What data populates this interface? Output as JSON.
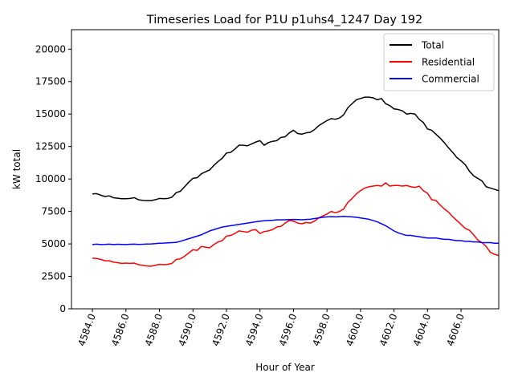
{
  "chart_data": {
    "type": "line",
    "title": "Timeseries Load for P1U p1uhs4_1247  Day 192",
    "xlabel": "Hour of Year",
    "ylabel": "kW total",
    "xlim": [
      4582.75,
      4608.25
    ],
    "ylim": [
      0,
      21500
    ],
    "x_ticks": [
      4584,
      4586,
      4588,
      4590,
      4592,
      4594,
      4596,
      4598,
      4600,
      4602,
      4604,
      4606
    ],
    "x_tick_labels": [
      "4584.0",
      "4586.0",
      "4588.0",
      "4590.0",
      "4592.0",
      "4594.0",
      "4596.0",
      "4598.0",
      "4600.0",
      "4602.0",
      "4604.0",
      "4606.0"
    ],
    "y_ticks": [
      0,
      2500,
      5000,
      7500,
      10000,
      12500,
      15000,
      17500,
      20000
    ],
    "y_tick_labels": [
      "0",
      "2500",
      "5000",
      "7500",
      "10000",
      "12500",
      "15000",
      "17500",
      "20000"
    ],
    "legend_position": "top-right",
    "x_start": 4584,
    "x_step": 0.25,
    "series": [
      {
        "name": "Total",
        "color": "#000000",
        "values": [
          8850,
          8870,
          8750,
          8650,
          8700,
          8560,
          8520,
          8480,
          8480,
          8500,
          8560,
          8400,
          8350,
          8330,
          8330,
          8400,
          8500,
          8480,
          8500,
          8600,
          8950,
          9050,
          9400,
          9750,
          10050,
          10100,
          10400,
          10550,
          10700,
          11050,
          11350,
          11600,
          12000,
          12050,
          12300,
          12600,
          12600,
          12550,
          12700,
          12850,
          12950,
          12600,
          12800,
          12900,
          12950,
          13200,
          13250,
          13550,
          13750,
          13500,
          13450,
          13550,
          13600,
          13800,
          14100,
          14300,
          14500,
          14650,
          14600,
          14700,
          14950,
          15500,
          15800,
          16100,
          16200,
          16300,
          16300,
          16250,
          16100,
          16200,
          15800,
          15650,
          15400,
          15350,
          15250,
          15000,
          15050,
          15000,
          14600,
          14350,
          13850,
          13750,
          13450,
          13150,
          12800,
          12400,
          12050,
          11650,
          11400,
          11100,
          10600,
          10250,
          10050,
          9850,
          9400,
          9300,
          9200,
          9100
        ]
      },
      {
        "name": "Residential",
        "color": "#ff0000",
        "values": [
          3900,
          3880,
          3800,
          3700,
          3700,
          3600,
          3550,
          3500,
          3520,
          3500,
          3520,
          3400,
          3350,
          3300,
          3280,
          3350,
          3420,
          3400,
          3420,
          3500,
          3800,
          3850,
          4050,
          4300,
          4550,
          4500,
          4800,
          4750,
          4700,
          4950,
          5150,
          5250,
          5600,
          5650,
          5800,
          6000,
          5950,
          5900,
          6050,
          6100,
          5800,
          5950,
          6000,
          6100,
          6300,
          6350,
          6600,
          6800,
          6750,
          6600,
          6550,
          6650,
          6600,
          6750,
          7000,
          7150,
          7300,
          7500,
          7400,
          7500,
          7700,
          8200,
          8500,
          8850,
          9100,
          9300,
          9400,
          9450,
          9500,
          9450,
          9700,
          9450,
          9500,
          9500,
          9450,
          9500,
          9400,
          9350,
          9450,
          9100,
          8900,
          8400,
          8350,
          8000,
          7700,
          7450,
          7100,
          6800,
          6500,
          6200,
          6050,
          5700,
          5300,
          5100,
          4800,
          4350,
          4200,
          4100
        ]
      },
      {
        "name": "Commercial",
        "color": "#0000ff",
        "values": [
          4950,
          4980,
          4950,
          4960,
          4980,
          4950,
          4970,
          4960,
          4950,
          4970,
          4980,
          4960,
          4970,
          4990,
          5000,
          5020,
          5050,
          5060,
          5080,
          5100,
          5120,
          5200,
          5300,
          5400,
          5500,
          5600,
          5700,
          5850,
          6000,
          6100,
          6200,
          6300,
          6350,
          6400,
          6450,
          6500,
          6550,
          6600,
          6650,
          6700,
          6750,
          6780,
          6800,
          6820,
          6850,
          6850,
          6860,
          6870,
          6880,
          6870,
          6860,
          6880,
          6900,
          6950,
          7000,
          7050,
          7080,
          7100,
          7080,
          7100,
          7120,
          7100,
          7080,
          7050,
          7000,
          6950,
          6900,
          6800,
          6700,
          6550,
          6400,
          6200,
          6000,
          5850,
          5750,
          5650,
          5650,
          5600,
          5550,
          5500,
          5450,
          5450,
          5450,
          5400,
          5350,
          5350,
          5300,
          5250,
          5250,
          5200,
          5200,
          5150,
          5150,
          5100,
          5100,
          5100,
          5050,
          5050
        ]
      }
    ]
  }
}
